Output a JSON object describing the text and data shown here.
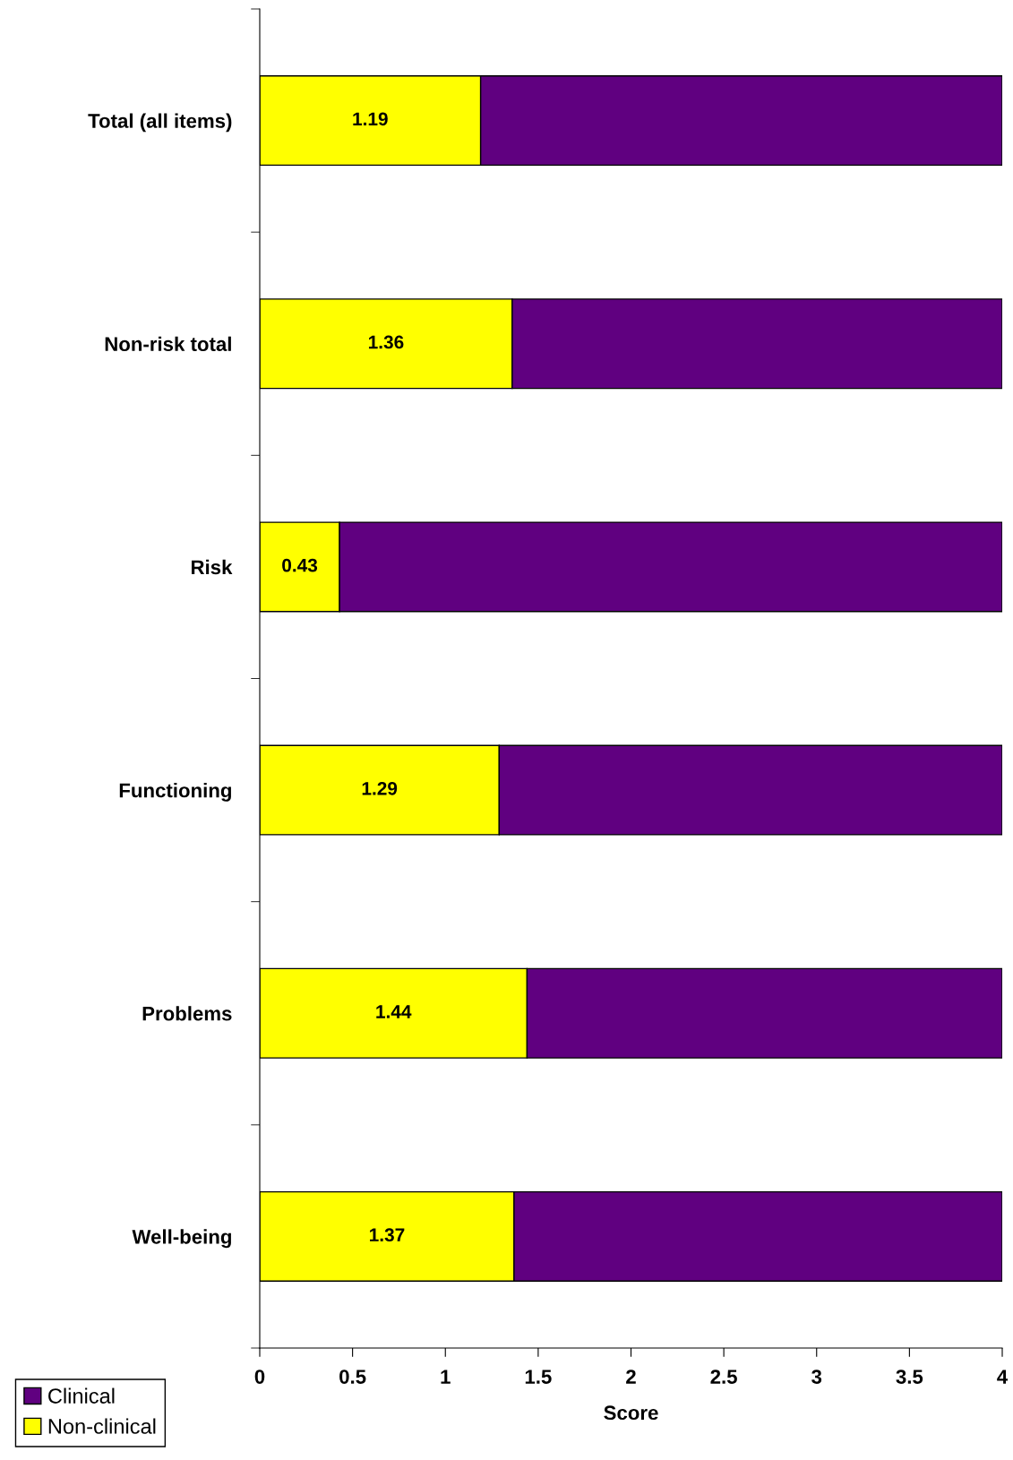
{
  "chart_data": {
    "type": "bar",
    "orientation": "horizontal",
    "stacked": true,
    "xlabel": "Score",
    "categories": [
      "Total (all items)",
      "Non-risk total",
      "Risk",
      "Functioning",
      "Problems",
      "Well-being"
    ],
    "series": [
      {
        "name": "Non-clinical",
        "color": "#ffff00",
        "values": [
          1.19,
          1.36,
          0.43,
          1.29,
          1.44,
          1.37
        ],
        "value_labels": [
          "1.19",
          "1.36",
          "0.43",
          "1.29",
          "1.44",
          "1.37"
        ]
      },
      {
        "name": "Clinical",
        "color": "#600080",
        "values": [
          2.81,
          2.64,
          3.57,
          2.71,
          2.56,
          2.63
        ]
      }
    ],
    "xlim": [
      0,
      4
    ],
    "xticks": [
      0,
      0.5,
      1,
      1.5,
      2,
      2.5,
      3,
      3.5,
      4
    ],
    "grid": false,
    "legend": "bottom left"
  }
}
